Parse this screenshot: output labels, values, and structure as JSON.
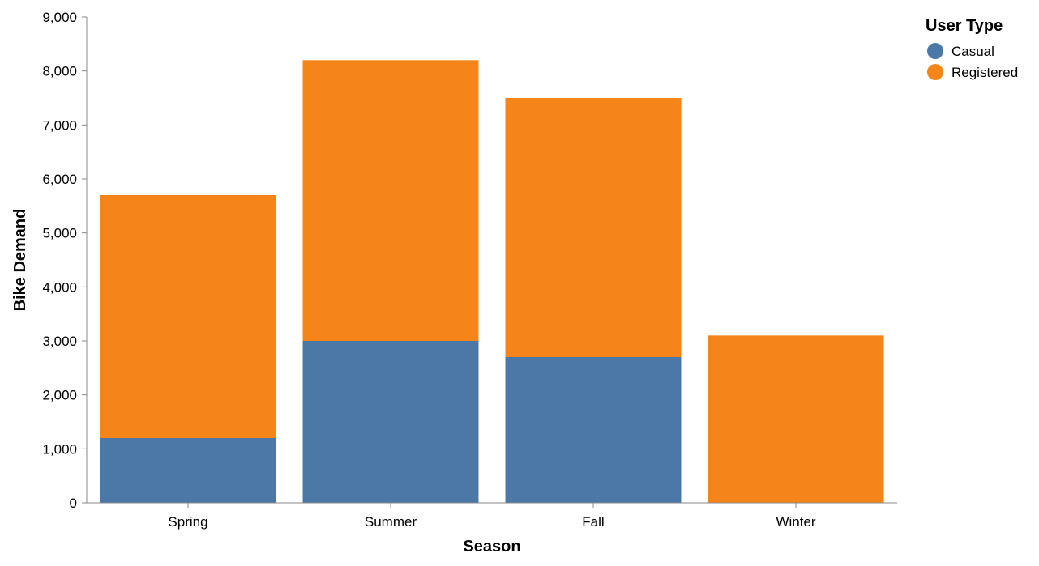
{
  "chart_data": {
    "type": "bar",
    "stacked": true,
    "categories": [
      "Spring",
      "Summer",
      "Fall",
      "Winter"
    ],
    "series": [
      {
        "name": "Casual",
        "color": "#4c78a8",
        "values": [
          1200,
          3000,
          2700,
          0
        ]
      },
      {
        "name": "Registered",
        "color": "#f58518",
        "values": [
          4500,
          5200,
          4800,
          3100
        ]
      }
    ],
    "xlabel": "Season",
    "ylabel": "Bike Demand",
    "ylim": [
      0,
      9000
    ],
    "yticks": [
      0,
      1000,
      2000,
      3000,
      4000,
      5000,
      6000,
      7000,
      8000,
      9000
    ],
    "ytick_labels": [
      "0",
      "1,000",
      "2,000",
      "3,000",
      "4,000",
      "5,000",
      "6,000",
      "7,000",
      "8,000",
      "9,000"
    ],
    "grid": false,
    "legend": {
      "title": "User Type",
      "placement": "top-right"
    }
  }
}
